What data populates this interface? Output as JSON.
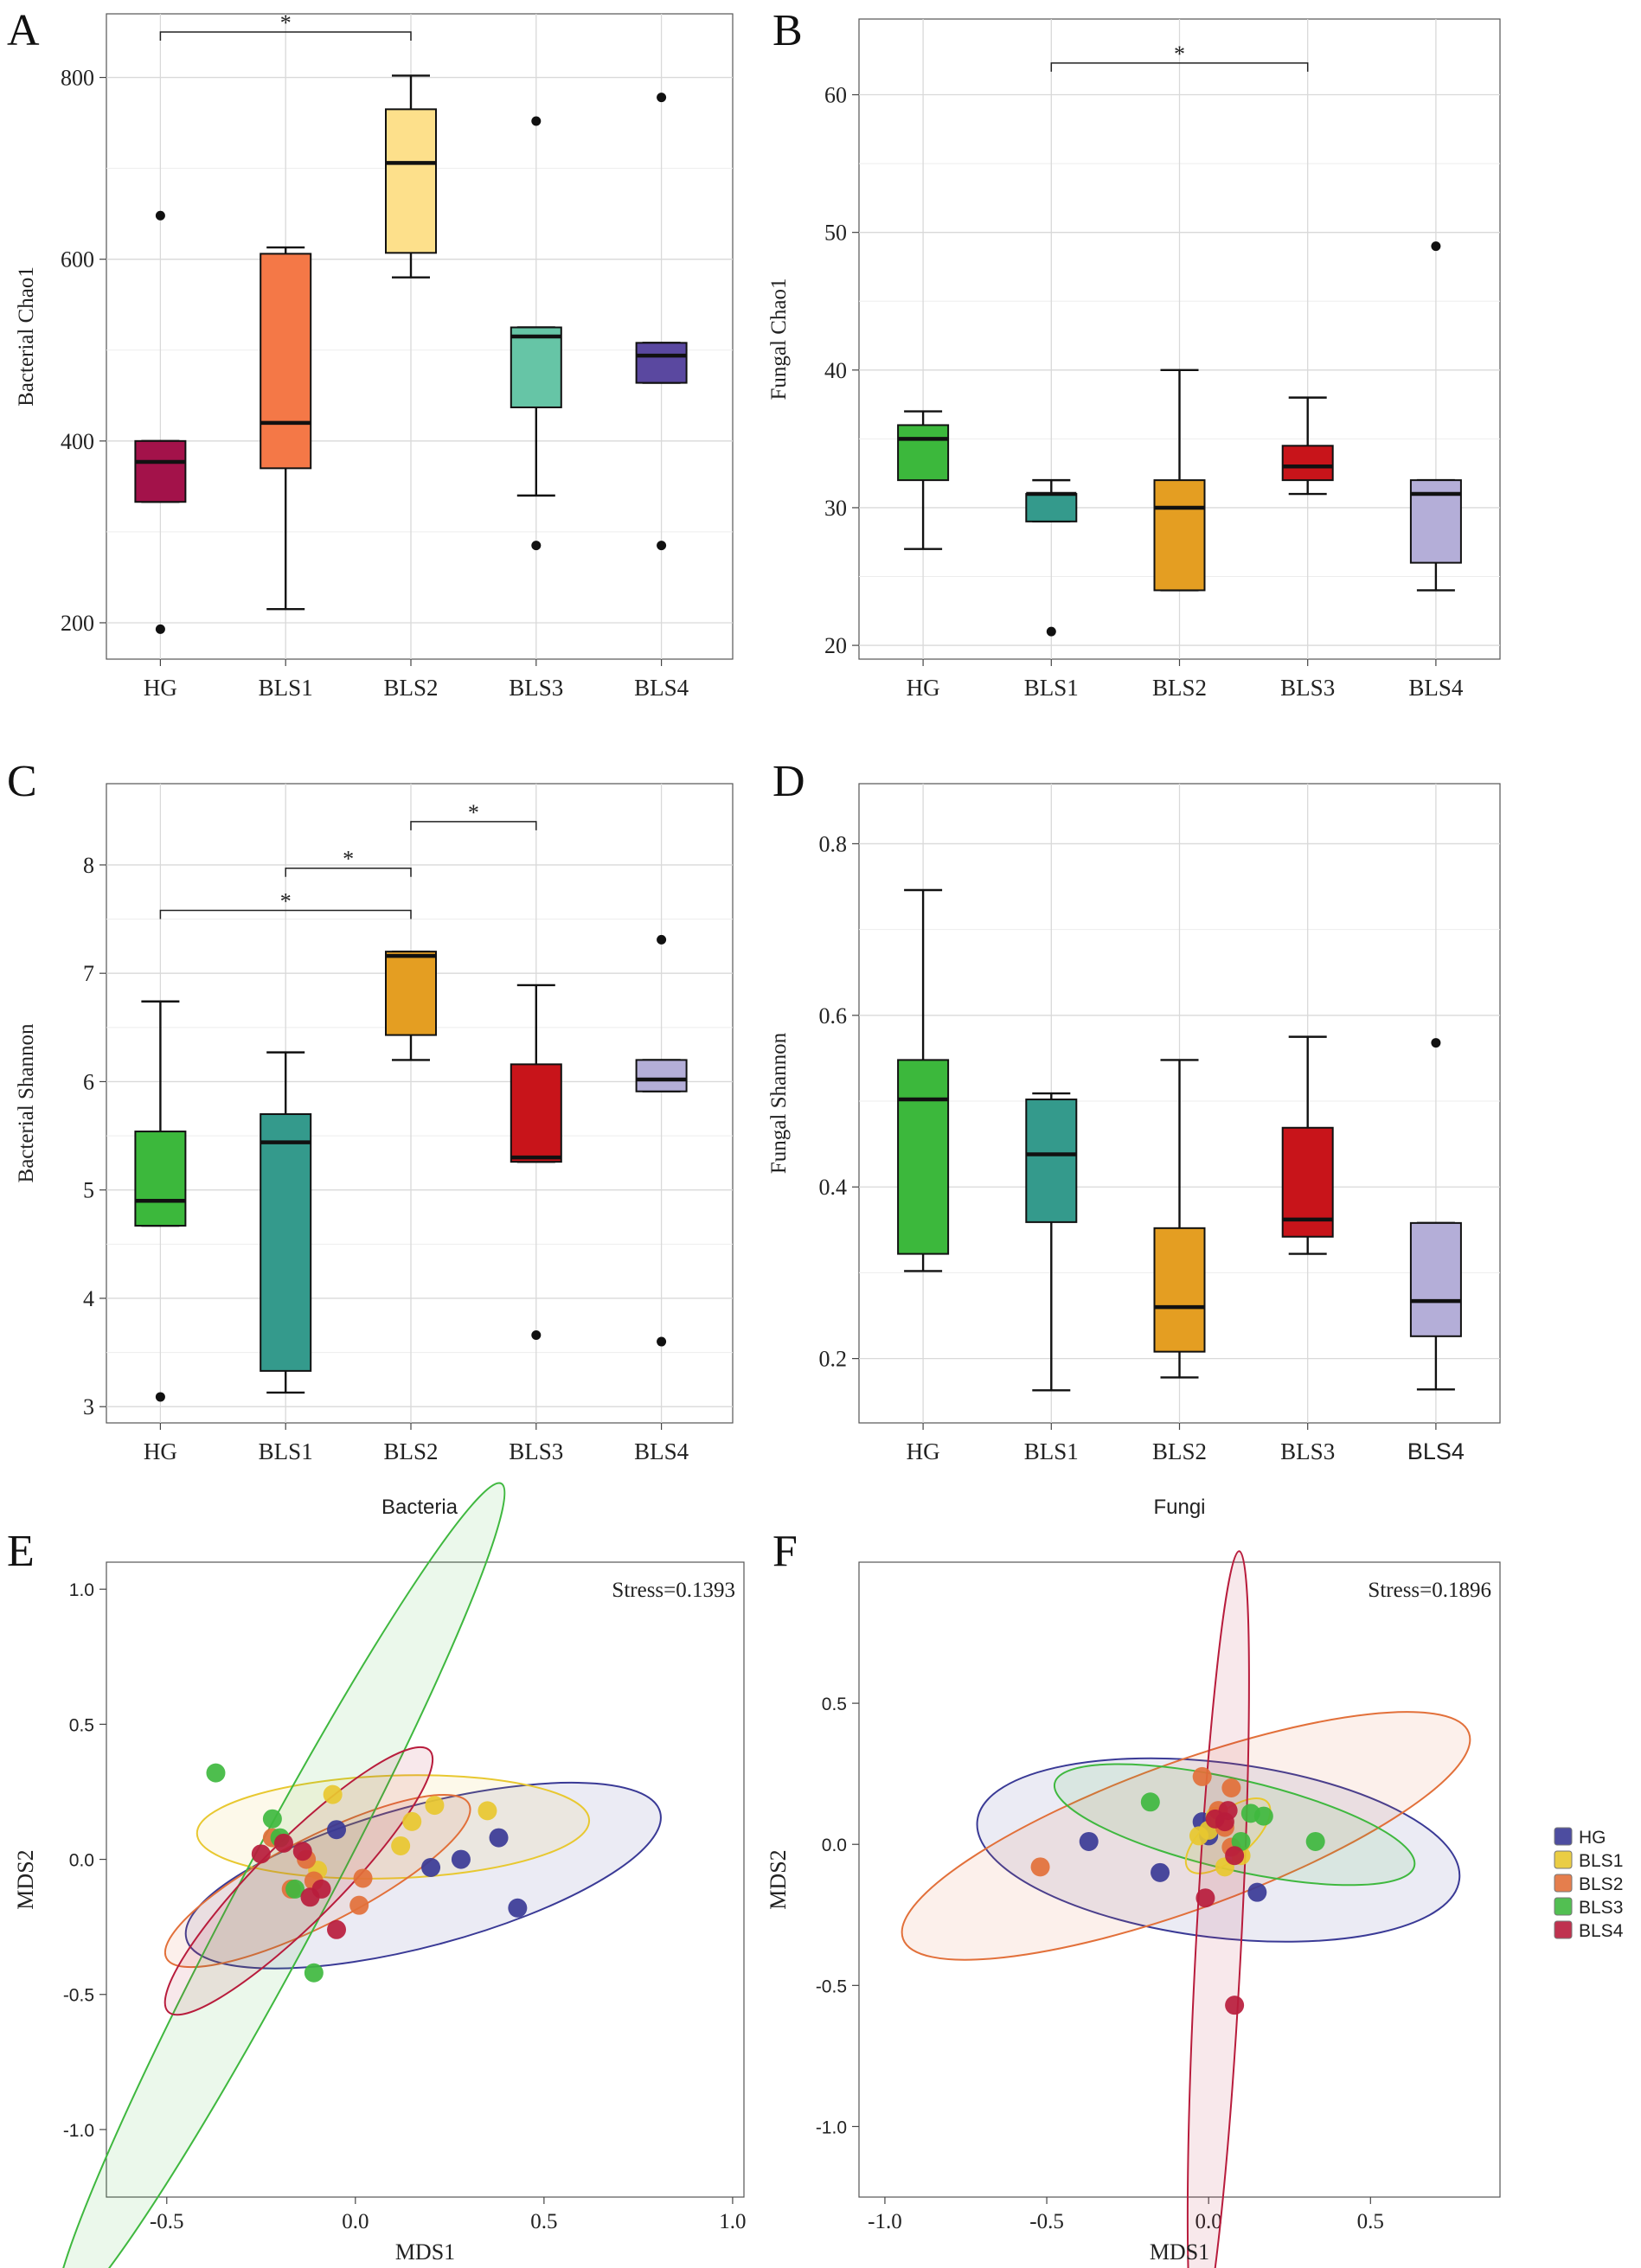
{
  "colors": {
    "HG": "#3a3a96",
    "BLS1": "#e8c830",
    "BLS2": "#e2703a",
    "BLS3": "#3fb83f",
    "BLS4": "#b81c3c"
  },
  "chart_data": [
    {
      "panel": "A",
      "type": "box",
      "ylabel": "Bacterial Chao1",
      "xlabel": "",
      "ylim": [
        160,
        870
      ],
      "yticks": [
        200,
        400,
        600,
        800
      ],
      "categories": [
        "HG",
        "BLS1",
        "BLS2",
        "BLS3",
        "BLS4"
      ],
      "boxes": [
        {
          "label": "HG",
          "min": 333,
          "q1": 333,
          "median": 377,
          "q3": 400,
          "max": 400,
          "outliers": [
            648,
            193
          ],
          "color": "#a3124a"
        },
        {
          "label": "BLS1",
          "min": 215,
          "q1": 370,
          "median": 420,
          "q3": 606,
          "max": 613,
          "outliers": [],
          "color": "#f47847"
        },
        {
          "label": "BLS2",
          "min": 580,
          "q1": 607,
          "median": 706,
          "q3": 765,
          "max": 802,
          "outliers": [],
          "color": "#fde08b"
        },
        {
          "label": "BLS3",
          "min": 340,
          "q1": 437,
          "median": 515,
          "q3": 525,
          "max": 525,
          "outliers": [
            752,
            285
          ],
          "color": "#66c5a6"
        },
        {
          "label": "BLS4",
          "min": 464,
          "q1": 464,
          "median": 494,
          "q3": 508,
          "max": 508,
          "outliers": [
            778,
            285
          ],
          "color": "#5a48a0"
        }
      ],
      "significance": [
        {
          "from": "HG",
          "to": "BLS2",
          "label": "*",
          "level": 850
        }
      ]
    },
    {
      "panel": "B",
      "type": "box",
      "ylabel": "Fungal Chao1",
      "xlabel": "",
      "ylim": [
        19,
        65.5
      ],
      "yticks": [
        20,
        30,
        40,
        50,
        60
      ],
      "categories": [
        "HG",
        "BLS1",
        "BLS2",
        "BLS3",
        "BLS4"
      ],
      "boxes": [
        {
          "label": "HG",
          "min": 27,
          "q1": 32,
          "median": 35,
          "q3": 36,
          "max": 37,
          "outliers": [],
          "color": "#3cb83c"
        },
        {
          "label": "BLS1",
          "min": 29,
          "q1": 29,
          "median": 31,
          "q3": 31,
          "max": 32,
          "outliers": [
            21
          ],
          "color": "#349a8c"
        },
        {
          "label": "BLS2",
          "min": 24,
          "q1": 24,
          "median": 30,
          "q3": 32,
          "max": 40,
          "outliers": [],
          "color": "#e49e22"
        },
        {
          "label": "BLS3",
          "min": 31,
          "q1": 32,
          "median": 33,
          "q3": 34.5,
          "max": 38,
          "outliers": [],
          "color": "#c8141a"
        },
        {
          "label": "BLS4",
          "min": 24,
          "q1": 26,
          "median": 31,
          "q3": 32,
          "max": 32,
          "outliers": [
            49
          ],
          "color": "#b4aed8"
        }
      ],
      "significance": [
        {
          "from": "BLS1",
          "to": "BLS3",
          "label": "*",
          "level": 62.3
        }
      ]
    },
    {
      "panel": "C",
      "type": "box",
      "ylabel": "Bacterial Shannon",
      "xlabel": "Bacteria",
      "ylim": [
        2.85,
        8.75
      ],
      "yticks": [
        3,
        4,
        5,
        6,
        7,
        8
      ],
      "categories": [
        "HG",
        "BLS1",
        "BLS2",
        "BLS3",
        "BLS4"
      ],
      "boxes": [
        {
          "label": "HG",
          "min": 4.67,
          "q1": 4.67,
          "median": 4.9,
          "q3": 5.54,
          "max": 6.74,
          "outliers": [
            3.09
          ],
          "color": "#3cb83c"
        },
        {
          "label": "BLS1",
          "min": 3.13,
          "q1": 3.33,
          "median": 5.44,
          "q3": 5.7,
          "max": 6.27,
          "outliers": [],
          "color": "#349a8c"
        },
        {
          "label": "BLS2",
          "min": 6.2,
          "q1": 6.43,
          "median": 7.16,
          "q3": 7.2,
          "max": 7.2,
          "outliers": [],
          "color": "#e49e22"
        },
        {
          "label": "BLS3",
          "min": 5.26,
          "q1": 5.26,
          "median": 5.3,
          "q3": 6.16,
          "max": 6.89,
          "outliers": [
            3.66
          ],
          "color": "#c8141a"
        },
        {
          "label": "BLS4",
          "min": 5.91,
          "q1": 5.91,
          "median": 6.02,
          "q3": 6.2,
          "max": 6.2,
          "outliers": [
            7.31,
            3.6
          ],
          "color": "#b4aed8"
        }
      ],
      "significance": [
        {
          "from": "HG",
          "to": "BLS2",
          "label": "*",
          "level": 7.58
        },
        {
          "from": "BLS1",
          "to": "BLS2",
          "label": "*",
          "level": 7.97
        },
        {
          "from": "BLS2",
          "to": "BLS3",
          "label": "*",
          "level": 8.4
        }
      ]
    },
    {
      "panel": "D",
      "type": "box",
      "ylabel": "Fungal Shannon",
      "xlabel": "Fungi",
      "ylim": [
        0.125,
        0.87
      ],
      "yticks": [
        0.2,
        0.4,
        0.6,
        0.8
      ],
      "categories": [
        "HG",
        "BLS1",
        "BLS2",
        "BLS3",
        "BLS4"
      ],
      "boxes": [
        {
          "label": "HG",
          "min": 0.302,
          "q1": 0.322,
          "median": 0.502,
          "q3": 0.548,
          "max": 0.746,
          "outliers": [],
          "color": "#3cb83c"
        },
        {
          "label": "BLS1",
          "min": 0.163,
          "q1": 0.359,
          "median": 0.438,
          "q3": 0.502,
          "max": 0.509,
          "outliers": [],
          "color": "#349a8c"
        },
        {
          "label": "BLS2",
          "min": 0.178,
          "q1": 0.208,
          "median": 0.26,
          "q3": 0.352,
          "max": 0.548,
          "outliers": [],
          "color": "#e49e22"
        },
        {
          "label": "BLS3",
          "min": 0.322,
          "q1": 0.342,
          "median": 0.362,
          "q3": 0.469,
          "max": 0.575,
          "outliers": [],
          "color": "#c8141a"
        },
        {
          "label": "BLS4",
          "min": 0.164,
          "q1": 0.226,
          "median": 0.267,
          "q3": 0.358,
          "max": 0.358,
          "outliers": [
            0.568
          ],
          "color": "#b4aed8"
        }
      ],
      "significance": []
    },
    {
      "panel": "E",
      "type": "scatter",
      "xlabel": "MDS1",
      "ylabel": "MDS2",
      "xlim": [
        -0.66,
        1.03
      ],
      "ylim": [
        -1.25,
        1.1
      ],
      "xticks": [
        -0.5,
        0.0,
        0.5,
        1.0
      ],
      "yticks": [
        -1.0,
        -0.5,
        0.0,
        0.5,
        1.0
      ],
      "annotation": "Stress=0.1393",
      "series": [
        {
          "name": "HG",
          "x": [
            -0.05,
            0.2,
            0.28,
            0.38,
            0.43
          ],
          "y": [
            0.11,
            -0.03,
            0.0,
            0.08,
            -0.18
          ]
        },
        {
          "name": "BLS1",
          "x": [
            -0.06,
            0.12,
            0.15,
            0.21,
            0.35,
            -0.1
          ],
          "y": [
            0.24,
            0.05,
            0.14,
            0.2,
            0.18,
            -0.04
          ]
        },
        {
          "name": "BLS2",
          "x": [
            -0.22,
            -0.13,
            -0.11,
            0.02,
            0.01,
            -0.17
          ],
          "y": [
            0.08,
            0.0,
            -0.08,
            -0.07,
            -0.17,
            -0.11
          ]
        },
        {
          "name": "BLS3",
          "x": [
            -0.37,
            -0.22,
            -0.16,
            -0.11,
            -0.2
          ],
          "y": [
            0.32,
            0.15,
            -0.11,
            -0.42,
            0.08
          ]
        },
        {
          "name": "BLS4",
          "x": [
            -0.25,
            -0.14,
            -0.12,
            -0.09,
            -0.05,
            -0.19
          ],
          "y": [
            0.02,
            0.03,
            -0.14,
            -0.11,
            -0.26,
            0.06
          ]
        }
      ],
      "ellipses": [
        {
          "group": "HG",
          "cx": 0.18,
          "cy": -0.06,
          "rx": 0.65,
          "ry": 0.26,
          "angle_deg": -15
        },
        {
          "group": "BLS1",
          "cx": 0.1,
          "cy": 0.12,
          "rx": 0.52,
          "ry": 0.19,
          "angle_deg": -2
        },
        {
          "group": "BLS2",
          "cx": -0.1,
          "cy": -0.08,
          "rx": 0.45,
          "ry": 0.16,
          "angle_deg": -27
        },
        {
          "group": "BLS3",
          "cx": -0.2,
          "cy": -0.15,
          "rx": 1.25,
          "ry": 0.16,
          "angle_deg": -62
        },
        {
          "group": "BLS4",
          "cx": -0.15,
          "cy": -0.08,
          "rx": 0.49,
          "ry": 0.15,
          "angle_deg": -45
        }
      ]
    },
    {
      "panel": "F",
      "type": "scatter",
      "xlabel": "MDS1",
      "ylabel": "MDS2",
      "xlim": [
        -1.08,
        0.9
      ],
      "ylim": [
        -1.25,
        1.0
      ],
      "xticks": [
        -1.0,
        -0.5,
        0.0,
        0.5
      ],
      "yticks": [
        -1.0,
        -0.5,
        0.0,
        0.5
      ],
      "annotation": "Stress=0.1896",
      "legend": [
        "HG",
        "BLS1",
        "BLS2",
        "BLS3",
        "BLS4"
      ],
      "series": [
        {
          "name": "HG",
          "x": [
            -0.37,
            -0.15,
            -0.02,
            0.0,
            0.15
          ],
          "y": [
            0.01,
            -0.1,
            0.08,
            0.03,
            -0.17
          ]
        },
        {
          "name": "BLS1",
          "x": [
            -0.03,
            0.0,
            0.05,
            0.1,
            0.02
          ],
          "y": [
            0.03,
            0.05,
            -0.08,
            -0.04,
            0.1
          ]
        },
        {
          "name": "BLS2",
          "x": [
            -0.52,
            -0.02,
            0.03,
            0.07,
            0.07,
            0.05
          ],
          "y": [
            -0.08,
            0.24,
            0.12,
            -0.01,
            0.2,
            0.06
          ]
        },
        {
          "name": "BLS3",
          "x": [
            -0.18,
            0.13,
            0.17,
            0.1,
            0.33
          ],
          "y": [
            0.15,
            0.11,
            0.1,
            0.01,
            0.01
          ]
        },
        {
          "name": "BLS4",
          "x": [
            -0.01,
            0.02,
            0.05,
            0.06,
            0.08,
            0.08
          ],
          "y": [
            -0.19,
            0.09,
            0.08,
            0.12,
            -0.57,
            -0.04
          ]
        }
      ],
      "ellipses": [
        {
          "group": "HG",
          "cx": 0.03,
          "cy": -0.02,
          "rx": 0.75,
          "ry": 0.31,
          "angle_deg": 7
        },
        {
          "group": "BLS2",
          "cx": -0.07,
          "cy": 0.03,
          "rx": 0.93,
          "ry": 0.26,
          "angle_deg": -20
        },
        {
          "group": "BLS3",
          "cx": 0.08,
          "cy": 0.07,
          "rx": 0.57,
          "ry": 0.16,
          "angle_deg": 13
        },
        {
          "group": "BLS1",
          "cx": 0.06,
          "cy": 0.03,
          "rx": 0.16,
          "ry": 0.08,
          "angle_deg": -40
        },
        {
          "group": "BLS4",
          "cx": 0.03,
          "cy": -0.37,
          "rx": 1.23,
          "ry": 0.08,
          "angle_deg": -87
        }
      ]
    }
  ]
}
